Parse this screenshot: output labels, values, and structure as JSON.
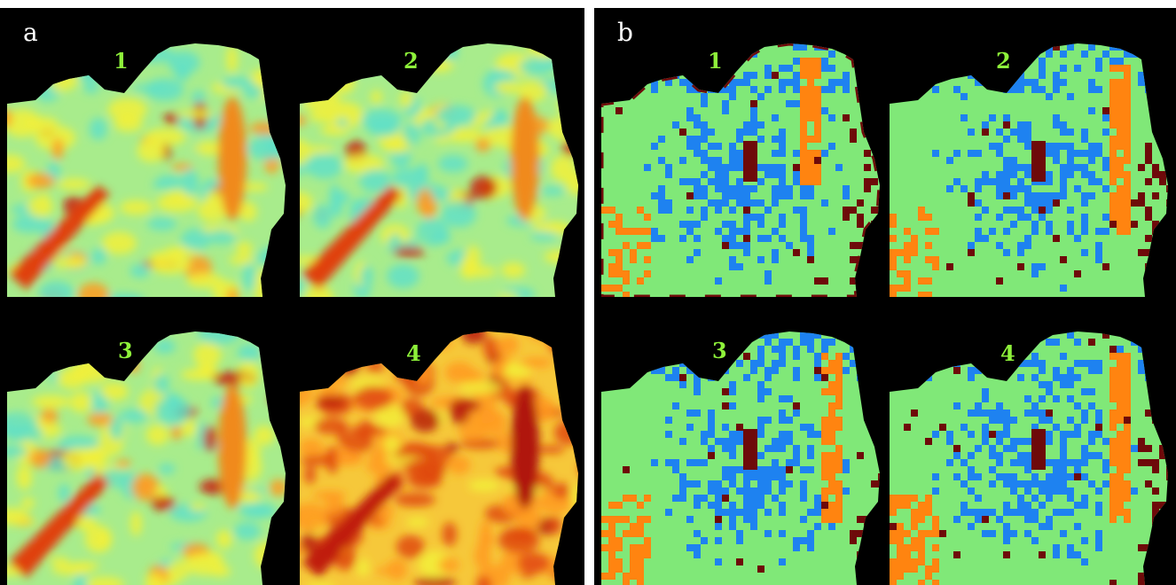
{
  "figure": {
    "panels": [
      {
        "id": "a",
        "letter": "a",
        "letter_color": "#ffffff",
        "label_color": "#8ef23a",
        "sublabels": [
          "1",
          "2",
          "3",
          "4"
        ],
        "colormap": "jet",
        "description_colors": {
          "low": "#60e0c8",
          "mid": "#f2f03a",
          "high": "#c81e0a"
        }
      },
      {
        "id": "b",
        "letter": "b",
        "letter_color": "#ffffff",
        "label_color": "#8ef23a",
        "sublabels": [
          "1",
          "2",
          "3",
          "4"
        ],
        "colormap": "clusters",
        "class_colors": [
          "#80e878",
          "#1e82f0",
          "#ff8410",
          "#6e0a0a"
        ]
      }
    ]
  }
}
